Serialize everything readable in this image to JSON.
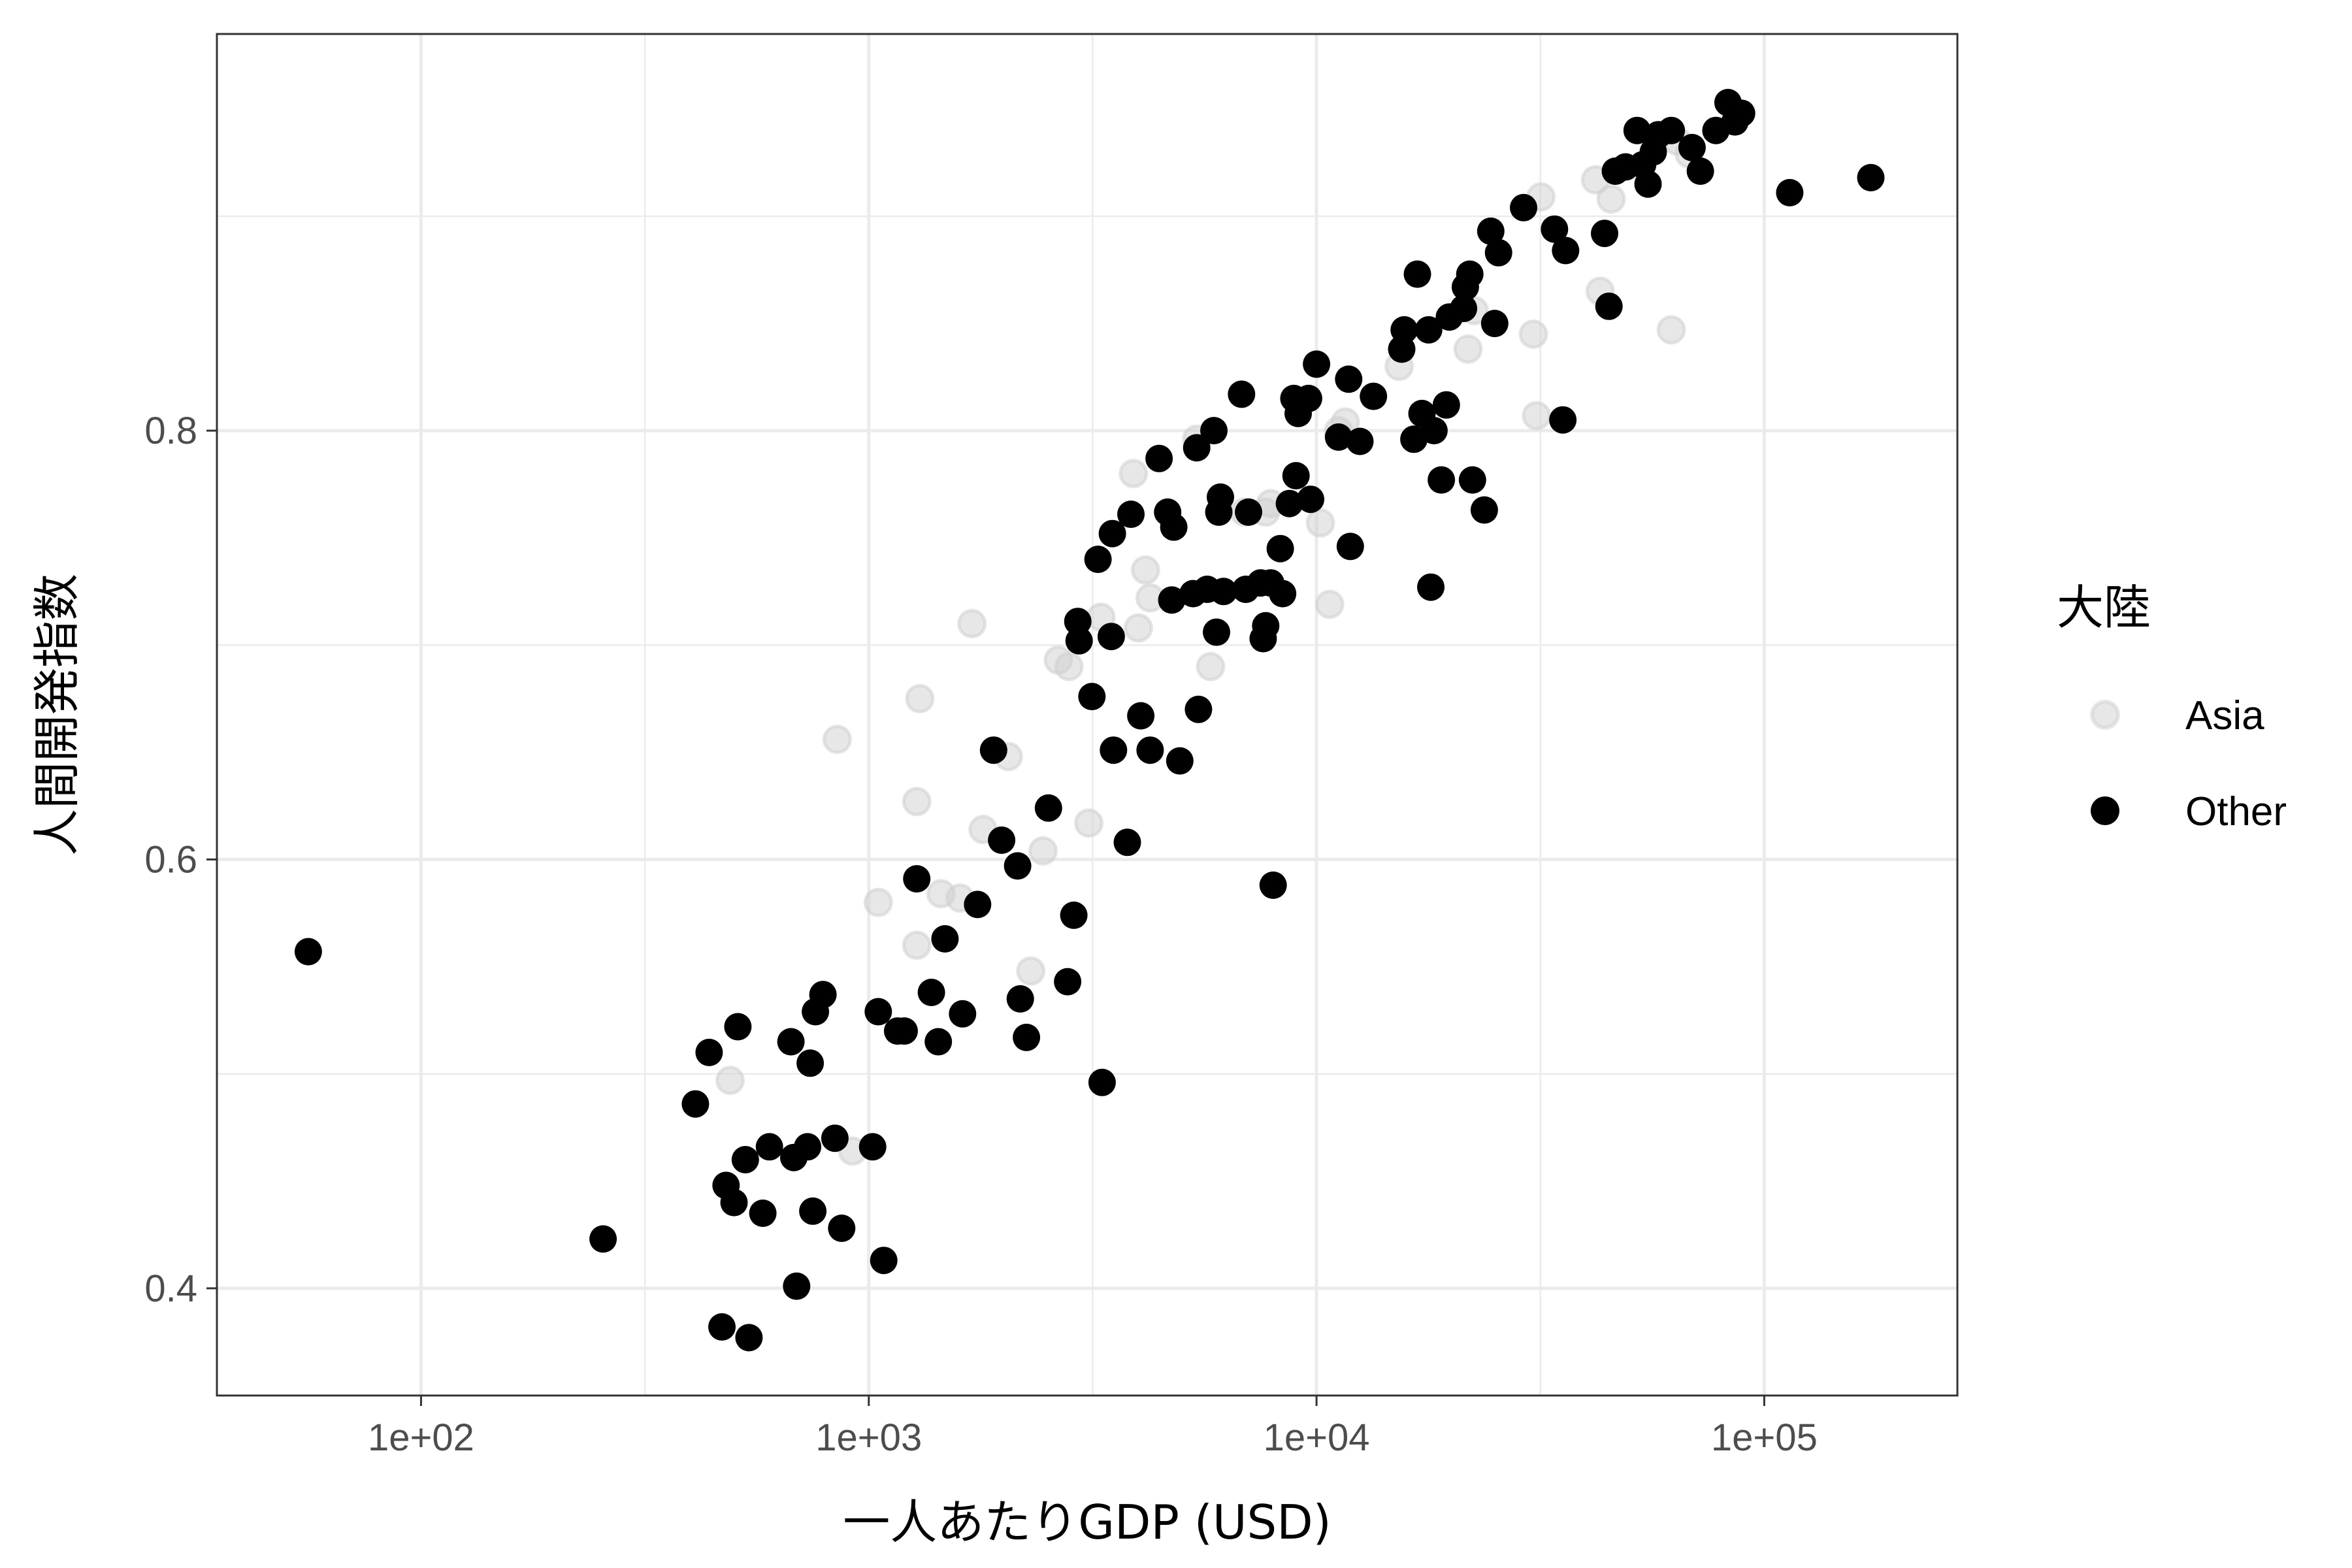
{
  "chart_data": {
    "type": "scatter",
    "xlabel": "一人あたりGDP (USD)",
    "ylabel": "人間開発指数",
    "x_scale": "log10",
    "xlim": [
      35,
      270000
    ],
    "ylim": [
      0.35,
      0.985
    ],
    "x_ticks": [
      {
        "value": 100,
        "label": "1e+02"
      },
      {
        "value": 1000,
        "label": "1e+03"
      },
      {
        "value": 10000,
        "label": "1e+04"
      },
      {
        "value": 100000,
        "label": "1e+05"
      }
    ],
    "y_ticks": [
      {
        "value": 0.4,
        "label": "0.4"
      },
      {
        "value": 0.6,
        "label": "0.6"
      },
      {
        "value": 0.8,
        "label": "0.8"
      }
    ],
    "grid": true,
    "legend": {
      "title": "大陸",
      "position": "right",
      "entries": [
        {
          "label": "Asia",
          "color": "#cfcfcf",
          "alpha": 0.5
        },
        {
          "label": "Other",
          "color": "#000000",
          "alpha": 1
        }
      ]
    },
    "series": [
      {
        "name": "Asia",
        "color": "#cfcfcf",
        "points": [
          [
            490,
            0.497
          ],
          [
            850,
            0.656
          ],
          [
            920,
            0.464
          ],
          [
            1050,
            0.58
          ],
          [
            1280,
            0.56
          ],
          [
            1280,
            0.627
          ],
          [
            1300,
            0.675
          ],
          [
            1450,
            0.584
          ],
          [
            1600,
            0.582
          ],
          [
            1700,
            0.71
          ],
          [
            1800,
            0.614
          ],
          [
            2050,
            0.648
          ],
          [
            2300,
            0.548
          ],
          [
            2450,
            0.604
          ],
          [
            2650,
            0.693
          ],
          [
            2800,
            0.69
          ],
          [
            3100,
            0.617
          ],
          [
            3300,
            0.713
          ],
          [
            3900,
            0.78
          ],
          [
            4000,
            0.708
          ],
          [
            4150,
            0.735
          ],
          [
            4250,
            0.722
          ],
          [
            5400,
            0.796
          ],
          [
            5800,
            0.69
          ],
          [
            6900,
            0.762
          ],
          [
            7700,
            0.762
          ],
          [
            7900,
            0.766
          ],
          [
            10200,
            0.757
          ],
          [
            10700,
            0.719
          ],
          [
            11200,
            0.8
          ],
          [
            11600,
            0.804
          ],
          [
            15300,
            0.83
          ],
          [
            21800,
            0.838
          ],
          [
            22500,
            0.856
          ],
          [
            30500,
            0.845
          ],
          [
            31000,
            0.807
          ],
          [
            31700,
            0.909
          ],
          [
            42000,
            0.917
          ],
          [
            43000,
            0.865
          ],
          [
            45500,
            0.908
          ],
          [
            62000,
            0.847
          ],
          [
            64000,
            0.935
          ],
          [
            68000,
            0.929
          ]
        ]
      },
      {
        "name": "Other",
        "color": "#000000",
        "points": [
          [
            56,
            0.557
          ],
          [
            255,
            0.423
          ],
          [
            410,
            0.486
          ],
          [
            440,
            0.51
          ],
          [
            470,
            0.382
          ],
          [
            480,
            0.448
          ],
          [
            500,
            0.44
          ],
          [
            510,
            0.522
          ],
          [
            530,
            0.46
          ],
          [
            540,
            0.377
          ],
          [
            580,
            0.435
          ],
          [
            600,
            0.466
          ],
          [
            670,
            0.515
          ],
          [
            680,
            0.461
          ],
          [
            690,
            0.401
          ],
          [
            730,
            0.466
          ],
          [
            740,
            0.505
          ],
          [
            750,
            0.436
          ],
          [
            760,
            0.529
          ],
          [
            790,
            0.537
          ],
          [
            840,
            0.47
          ],
          [
            870,
            0.428
          ],
          [
            1020,
            0.466
          ],
          [
            1050,
            0.529
          ],
          [
            1080,
            0.413
          ],
          [
            1160,
            0.52
          ],
          [
            1200,
            0.52
          ],
          [
            1280,
            0.591
          ],
          [
            1380,
            0.538
          ],
          [
            1430,
            0.515
          ],
          [
            1480,
            0.563
          ],
          [
            1620,
            0.528
          ],
          [
            1750,
            0.579
          ],
          [
            1900,
            0.651
          ],
          [
            1980,
            0.609
          ],
          [
            2150,
            0.597
          ],
          [
            2180,
            0.535
          ],
          [
            2250,
            0.517
          ],
          [
            2520,
            0.624
          ],
          [
            2780,
            0.543
          ],
          [
            2870,
            0.574
          ],
          [
            2930,
            0.711
          ],
          [
            2950,
            0.702
          ],
          [
            3150,
            0.676
          ],
          [
            3250,
            0.74
          ],
          [
            3320,
            0.496
          ],
          [
            3480,
            0.704
          ],
          [
            3500,
            0.752
          ],
          [
            3520,
            0.651
          ],
          [
            3780,
            0.608
          ],
          [
            3850,
            0.761
          ],
          [
            4050,
            0.667
          ],
          [
            4250,
            0.651
          ],
          [
            4450,
            0.787
          ],
          [
            4650,
            0.762
          ],
          [
            4750,
            0.721
          ],
          [
            4800,
            0.755
          ],
          [
            4950,
            0.646
          ],
          [
            5300,
            0.724
          ],
          [
            5400,
            0.792
          ],
          [
            5450,
            0.67
          ],
          [
            5700,
            0.726
          ],
          [
            5900,
            0.8
          ],
          [
            5980,
            0.706
          ],
          [
            6050,
            0.762
          ],
          [
            6100,
            0.769
          ],
          [
            6200,
            0.725
          ],
          [
            6800,
            0.817
          ],
          [
            6950,
            0.726
          ],
          [
            7050,
            0.762
          ],
          [
            7500,
            0.729
          ],
          [
            7600,
            0.703
          ],
          [
            7700,
            0.709
          ],
          [
            7900,
            0.729
          ],
          [
            8000,
            0.588
          ],
          [
            8300,
            0.745
          ],
          [
            8400,
            0.724
          ],
          [
            8700,
            0.766
          ],
          [
            8900,
            0.815
          ],
          [
            9000,
            0.779
          ],
          [
            9100,
            0.808
          ],
          [
            9600,
            0.815
          ],
          [
            9700,
            0.768
          ],
          [
            10000,
            0.831
          ],
          [
            11200,
            0.797
          ],
          [
            11800,
            0.824
          ],
          [
            11900,
            0.746
          ],
          [
            12500,
            0.795
          ],
          [
            13400,
            0.816
          ],
          [
            15500,
            0.838
          ],
          [
            15700,
            0.847
          ],
          [
            16500,
            0.796
          ],
          [
            16800,
            0.873
          ],
          [
            17200,
            0.808
          ],
          [
            17800,
            0.847
          ],
          [
            18000,
            0.727
          ],
          [
            18300,
            0.8
          ],
          [
            19000,
            0.777
          ],
          [
            19500,
            0.812
          ],
          [
            19800,
            0.853
          ],
          [
            21300,
            0.857
          ],
          [
            21500,
            0.867
          ],
          [
            22000,
            0.873
          ],
          [
            22300,
            0.777
          ],
          [
            23700,
            0.763
          ],
          [
            24500,
            0.893
          ],
          [
            25000,
            0.85
          ],
          [
            25500,
            0.883
          ],
          [
            29000,
            0.904
          ],
          [
            34000,
            0.894
          ],
          [
            35500,
            0.805
          ],
          [
            36000,
            0.884
          ],
          [
            44000,
            0.892
          ],
          [
            45000,
            0.858
          ],
          [
            46500,
            0.921
          ],
          [
            49000,
            0.923
          ],
          [
            52000,
            0.94
          ],
          [
            53500,
            0.924
          ],
          [
            55000,
            0.915
          ],
          [
            56500,
            0.93
          ],
          [
            58000,
            0.938
          ],
          [
            62000,
            0.94
          ],
          [
            69000,
            0.932
          ],
          [
            72000,
            0.921
          ],
          [
            78000,
            0.94
          ],
          [
            83000,
            0.953
          ],
          [
            86000,
            0.944
          ],
          [
            89000,
            0.948
          ],
          [
            114000,
            0.911
          ],
          [
            173000,
            0.918
          ]
        ]
      }
    ]
  }
}
